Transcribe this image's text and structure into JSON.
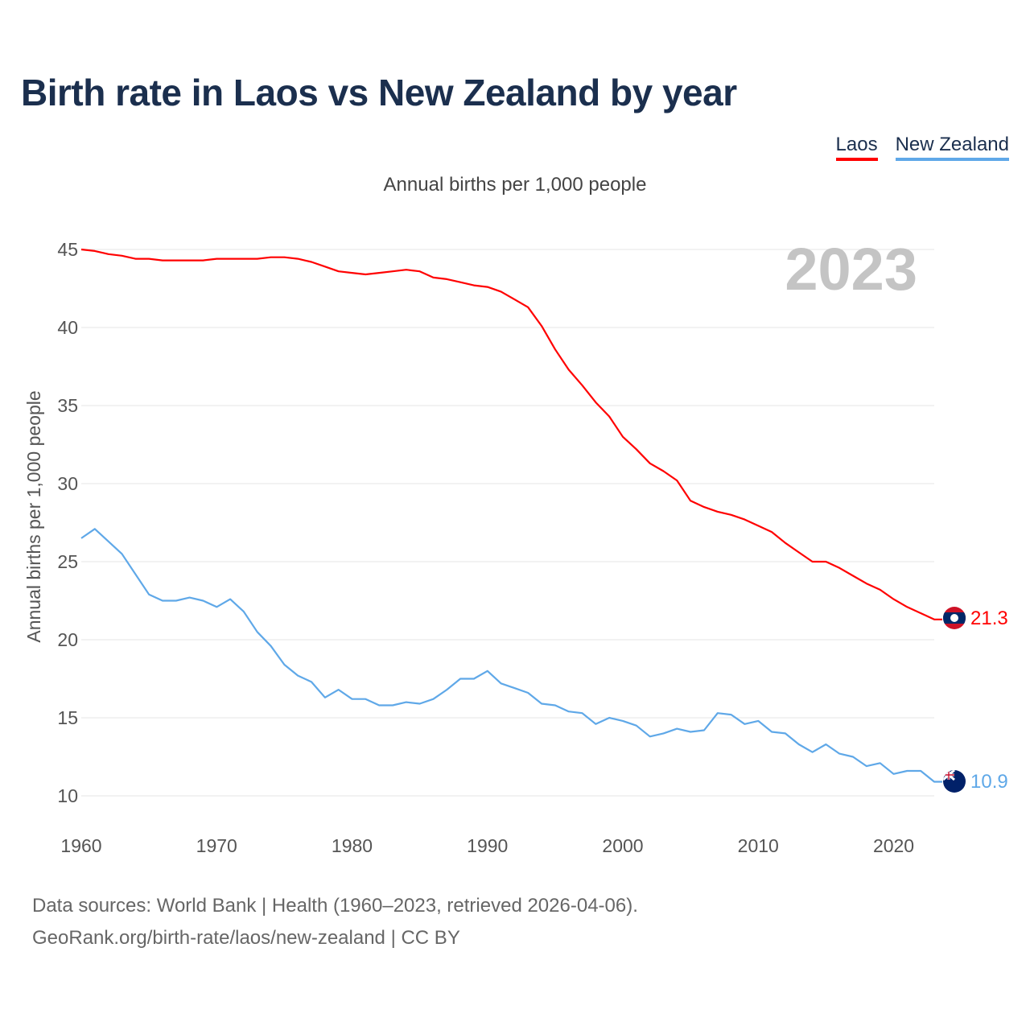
{
  "colors": {
    "laos": "#ff0000",
    "nz": "#5fa8e8",
    "title": "#1b2f4e",
    "grid": "#e6e6e6"
  },
  "chart_data": {
    "type": "line",
    "title": "Birth rate in Laos vs New Zealand by year",
    "subtitle": "Annual births per 1,000 people",
    "ylabel": "Annual births per 1,000 people",
    "xlabel": "",
    "year_display": "2023",
    "xlim": [
      1960,
      2023
    ],
    "ylim": [
      10,
      45
    ],
    "yticks": [
      10,
      15,
      20,
      25,
      30,
      35,
      40,
      45
    ],
    "xticks": [
      1960,
      1970,
      1980,
      1990,
      2000,
      2010,
      2020
    ],
    "x": [
      1960,
      1961,
      1962,
      1963,
      1964,
      1965,
      1966,
      1967,
      1968,
      1969,
      1970,
      1971,
      1972,
      1973,
      1974,
      1975,
      1976,
      1977,
      1978,
      1979,
      1980,
      1981,
      1982,
      1983,
      1984,
      1985,
      1986,
      1987,
      1988,
      1989,
      1990,
      1991,
      1992,
      1993,
      1994,
      1995,
      1996,
      1997,
      1998,
      1999,
      2000,
      2001,
      2002,
      2003,
      2004,
      2005,
      2006,
      2007,
      2008,
      2009,
      2010,
      2011,
      2012,
      2013,
      2014,
      2015,
      2016,
      2017,
      2018,
      2019,
      2020,
      2021,
      2022,
      2023
    ],
    "series": [
      {
        "name": "Laos",
        "end_label": "21.3",
        "values": [
          45.0,
          44.9,
          44.7,
          44.6,
          44.4,
          44.4,
          44.3,
          44.3,
          44.3,
          44.3,
          44.4,
          44.4,
          44.4,
          44.4,
          44.5,
          44.5,
          44.4,
          44.2,
          43.9,
          43.6,
          43.5,
          43.4,
          43.5,
          43.6,
          43.7,
          43.6,
          43.2,
          43.1,
          42.9,
          42.7,
          42.6,
          42.3,
          41.8,
          41.3,
          40.1,
          38.6,
          37.3,
          36.3,
          35.2,
          34.3,
          33.0,
          32.2,
          31.3,
          30.8,
          30.2,
          28.9,
          28.5,
          28.2,
          28.0,
          27.7,
          27.3,
          26.9,
          26.2,
          25.6,
          25.0,
          25.0,
          24.6,
          24.1,
          23.6,
          23.2,
          22.6,
          22.1,
          21.7,
          21.3
        ]
      },
      {
        "name": "New Zealand",
        "end_label": "10.9",
        "values": [
          26.5,
          27.1,
          26.3,
          25.5,
          24.2,
          22.9,
          22.5,
          22.5,
          22.7,
          22.5,
          22.1,
          22.6,
          21.8,
          20.5,
          19.6,
          18.4,
          17.7,
          17.3,
          16.3,
          16.8,
          16.2,
          16.2,
          15.8,
          15.8,
          16.0,
          15.9,
          16.2,
          16.8,
          17.5,
          17.5,
          18.0,
          17.2,
          16.9,
          16.6,
          15.9,
          15.8,
          15.4,
          15.3,
          14.6,
          15.0,
          14.8,
          14.5,
          13.8,
          14.0,
          14.3,
          14.1,
          14.2,
          15.3,
          15.2,
          14.6,
          14.8,
          14.1,
          14.0,
          13.3,
          12.8,
          13.3,
          12.7,
          12.5,
          11.9,
          12.1,
          11.4,
          11.6,
          11.6,
          10.9
        ]
      }
    ]
  },
  "footer": {
    "line1": "Data sources: World Bank | Health (1960–2023, retrieved 2026-04-06).",
    "line2": "GeoRank.org/birth-rate/laos/new-zealand | CC BY"
  }
}
